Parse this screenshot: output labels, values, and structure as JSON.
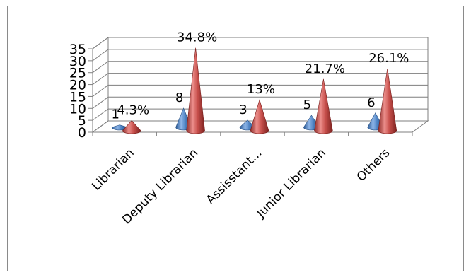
{
  "chart_data": {
    "type": "bar",
    "subtype": "3d-cone",
    "categories": [
      "Librarian",
      "Deputy Librarian",
      "Assisstant...",
      "Junior Librarian",
      "Others"
    ],
    "series": [
      {
        "values": [
          1,
          8,
          3,
          5,
          6
        ],
        "labels": [
          "1",
          "8",
          "3",
          "5",
          "6"
        ],
        "color": "#4a7ebb"
      },
      {
        "values": [
          4.3,
          34.8,
          13,
          21.7,
          26.1
        ],
        "labels": [
          "4.3%",
          "34.8%",
          "13%",
          "21.7%",
          "26.1%"
        ],
        "color": "#c0504d"
      }
    ],
    "yticks": [
      "0",
      "5",
      "10",
      "15",
      "20",
      "25",
      "30",
      "35"
    ],
    "ylim": [
      0,
      35
    ],
    "grid": true,
    "legend": "none",
    "title": "",
    "xlabel": "",
    "ylabel": ""
  }
}
